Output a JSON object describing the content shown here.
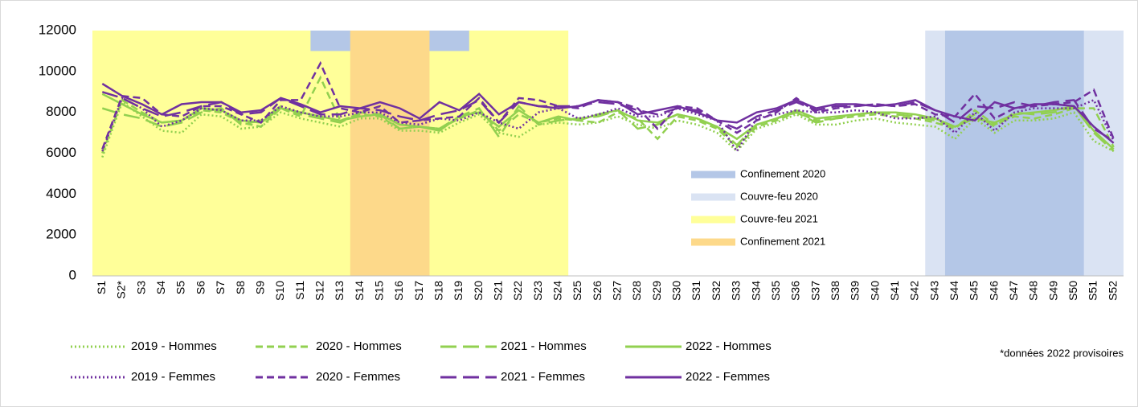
{
  "chart_data": {
    "type": "line",
    "categories": [
      "S1",
      "S2*",
      "S3",
      "S4",
      "S5",
      "S6",
      "S7",
      "S8",
      "S9",
      "S10",
      "S11",
      "S12",
      "S13",
      "S14",
      "S15",
      "S16",
      "S17",
      "S18",
      "S19",
      "S20",
      "S21",
      "S22",
      "S23",
      "S24",
      "S25",
      "S26",
      "S27",
      "S28",
      "S29",
      "S30",
      "S31",
      "S32",
      "S33",
      "S34",
      "S35",
      "S36",
      "S37",
      "S38",
      "S39",
      "S40",
      "S41",
      "S42",
      "S43",
      "S44",
      "S45",
      "S46",
      "S47",
      "S48",
      "S49",
      "S50",
      "S51",
      "S52"
    ],
    "ylim": [
      0,
      12000
    ],
    "yticks": [
      0,
      2000,
      4000,
      6000,
      8000,
      10000,
      12000
    ],
    "series": [
      {
        "name": "2019 - Hommes",
        "color": "#92d050",
        "dash": "dotted",
        "values": [
          5800,
          8500,
          7800,
          7100,
          7000,
          7900,
          7800,
          7200,
          7300,
          8000,
          7700,
          7500,
          7300,
          7700,
          7700,
          7100,
          7100,
          7000,
          7500,
          7900,
          7000,
          6800,
          7400,
          7500,
          7400,
          7500,
          7800,
          7400,
          7200,
          7600,
          7400,
          7000,
          6100,
          7200,
          7500,
          7900,
          7400,
          7400,
          7600,
          7700,
          7500,
          7400,
          7300,
          6700,
          7700,
          7000,
          7600,
          7600,
          7700,
          8000,
          6600,
          6100
        ]
      },
      {
        "name": "2020 - Hommes",
        "color": "#92d050",
        "dash": "dashed",
        "values": [
          6000,
          8600,
          8000,
          7500,
          7600,
          8100,
          8000,
          7500,
          7300,
          8200,
          7800,
          9700,
          7600,
          7900,
          7800,
          7200,
          7300,
          7200,
          7700,
          8100,
          7100,
          7900,
          7500,
          7700,
          7600,
          7500,
          8000,
          7700,
          6700,
          7800,
          7600,
          7200,
          6300,
          7300,
          7600,
          8000,
          7600,
          7700,
          7800,
          7900,
          7800,
          7700,
          7500,
          7200,
          8100,
          7400,
          7800,
          7700,
          7900,
          8200,
          8200,
          6300
        ]
      },
      {
        "name": "2021 - Hommes",
        "color": "#92d050",
        "dash": "long-dash",
        "values": [
          8200,
          7900,
          7700,
          7300,
          7500,
          8000,
          8200,
          7400,
          7600,
          8300,
          7900,
          7700,
          7500,
          8000,
          7900,
          7200,
          7300,
          7200,
          7800,
          8200,
          6800,
          8300,
          7400,
          7600,
          7700,
          7800,
          8100,
          7200,
          7400,
          7900,
          7700,
          7300,
          6400,
          7400,
          7700,
          8000,
          7500,
          7700,
          7900,
          8000,
          7900,
          7800,
          7600,
          7300,
          7900,
          7300,
          8000,
          7900,
          8000,
          8300,
          7000,
          6100
        ]
      },
      {
        "name": "2022 - Hommes",
        "color": "#92d050",
        "dash": "solid",
        "values": [
          8900,
          8400,
          7900,
          7500,
          7600,
          8200,
          8100,
          7600,
          7500,
          8200,
          8000,
          7800,
          7600,
          7800,
          7900,
          7400,
          7300,
          7100,
          7800,
          8000,
          7300,
          8100,
          7500,
          7800,
          7600,
          7900,
          8100,
          7600,
          7500,
          7900,
          7700,
          7300,
          6700,
          7400,
          7700,
          8100,
          7700,
          7800,
          7900,
          8000,
          8000,
          7900,
          7700,
          7300,
          7700,
          7500,
          7900,
          8000,
          8100,
          8300,
          7100,
          6200
        ]
      },
      {
        "name": "2019 - Femmes",
        "color": "#7030a0",
        "dash": "dotted",
        "values": [
          6100,
          8700,
          8200,
          7300,
          7600,
          8200,
          8100,
          7600,
          7600,
          8300,
          8000,
          7800,
          7800,
          8000,
          8000,
          7500,
          7400,
          7700,
          7600,
          8000,
          7500,
          7200,
          8000,
          8200,
          7700,
          7900,
          8200,
          7800,
          7800,
          8200,
          7900,
          7600,
          6100,
          7700,
          7900,
          8100,
          8000,
          8000,
          8100,
          8000,
          7700,
          7700,
          7800,
          7000,
          8000,
          7100,
          8000,
          8200,
          8200,
          8200,
          8600,
          6600
        ]
      },
      {
        "name": "2020 - Femmes",
        "color": "#7030a0",
        "dash": "dashed",
        "values": [
          6200,
          8800,
          8700,
          7900,
          7800,
          8300,
          8300,
          7900,
          7500,
          8600,
          8600,
          10400,
          8200,
          8000,
          8300,
          7500,
          7600,
          7700,
          7800,
          8700,
          7500,
          8700,
          8600,
          8300,
          8200,
          8600,
          8500,
          8200,
          7200,
          8300,
          8200,
          7600,
          7000,
          7600,
          8000,
          8700,
          8000,
          8200,
          8300,
          8400,
          8300,
          8400,
          7900,
          7800,
          8900,
          7700,
          8200,
          8300,
          8400,
          8500,
          9100,
          6700
        ]
      },
      {
        "name": "2021 - Femmes",
        "color": "#7030a0",
        "dash": "long-dash",
        "values": [
          9000,
          8700,
          8200,
          7800,
          8000,
          8300,
          8500,
          7900,
          8000,
          8700,
          8300,
          7900,
          7900,
          8200,
          8100,
          7800,
          7600,
          7900,
          8100,
          8600,
          7500,
          8500,
          8300,
          8300,
          8300,
          8500,
          8400,
          8100,
          7900,
          8200,
          8100,
          7600,
          7200,
          7800,
          8100,
          8500,
          8100,
          8300,
          8300,
          8400,
          8300,
          8500,
          8100,
          7500,
          8300,
          8200,
          8500,
          8300,
          8500,
          8600,
          7200,
          6600
        ]
      },
      {
        "name": "2022 - Femmes",
        "color": "#7030a0",
        "dash": "solid",
        "values": [
          9400,
          8800,
          8400,
          7900,
          8400,
          8500,
          8500,
          8000,
          8100,
          8700,
          8400,
          8000,
          8300,
          8200,
          8500,
          8200,
          7700,
          8500,
          8100,
          8900,
          7900,
          8500,
          8300,
          8200,
          8300,
          8600,
          8500,
          7900,
          8100,
          8300,
          8000,
          7600,
          7500,
          8000,
          8200,
          8600,
          8200,
          8400,
          8400,
          8300,
          8400,
          8600,
          8100,
          7800,
          7600,
          8500,
          8200,
          8400,
          8400,
          8300,
          7300,
          6500
        ]
      }
    ],
    "bands": [
      {
        "name": "Confinement 2020",
        "color": "#b4c7e7",
        "periods": [
          {
            "from": "S12",
            "to": "S19",
            "y_from": 11000
          },
          {
            "from": "S44",
            "to": "S50"
          }
        ]
      },
      {
        "name": "Couvre-feu 2020",
        "color": "#dae3f3",
        "periods": [
          {
            "from": "S43",
            "to": "S52"
          }
        ]
      },
      {
        "name": "Couvre-feu 2021",
        "color": "#ffff99",
        "periods": [
          {
            "from": "S1",
            "to": "S24"
          }
        ]
      },
      {
        "name": "Confinement 2021",
        "color": "#fdd98a",
        "periods": [
          {
            "from": "S14",
            "to": "S17"
          }
        ]
      }
    ],
    "annotation": "*données 2022 provisoires"
  }
}
